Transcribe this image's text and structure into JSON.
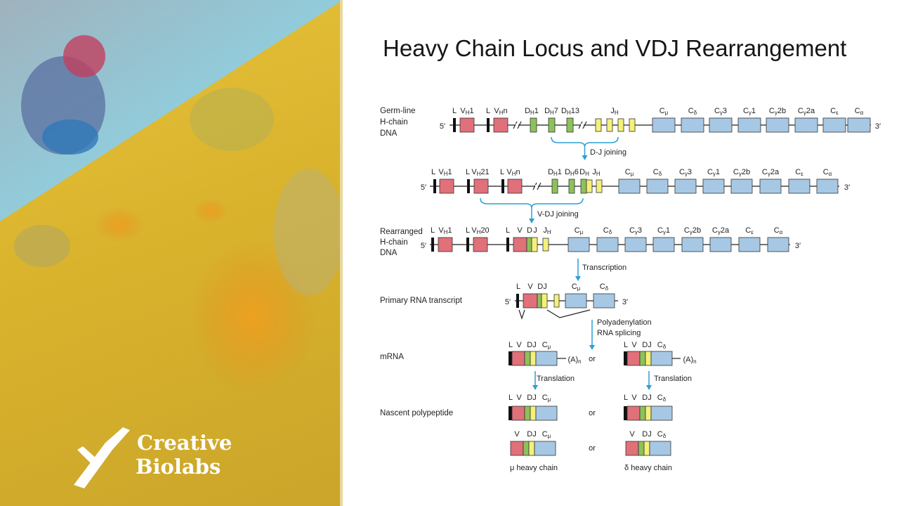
{
  "logo": {
    "line1": "Creative",
    "line2": "Biolabs"
  },
  "title": "Heavy Chain Locus and VDJ Rearrangement",
  "diagram": {
    "germline": {
      "label": [
        "Germ-line",
        "H-chain",
        "DNA"
      ],
      "five": "5′",
      "three": "3′",
      "genes": [
        {
          "base": "L"
        },
        {
          "base": "V",
          "sub": "H",
          "tail": "1"
        },
        {
          "base": "L"
        },
        {
          "base": "V",
          "sub": "H",
          "tail": "n"
        },
        {
          "base": "D",
          "sub": "H",
          "tail": "1"
        },
        {
          "base": "D",
          "sub": "H",
          "tail": "7"
        },
        {
          "base": "D",
          "sub": "H",
          "tail": "13"
        },
        {
          "base": "J",
          "sub": "H"
        },
        {
          "base": "C",
          "sub": "μ"
        },
        {
          "base": "C",
          "sub": "δ"
        },
        {
          "base": "C",
          "sub": "γ",
          "tail": "3"
        },
        {
          "base": "C",
          "sub": "γ",
          "tail": "1"
        },
        {
          "base": "C",
          "sub": "γ",
          "tail": "2b"
        },
        {
          "base": "C",
          "sub": "γ",
          "tail": "2a"
        },
        {
          "base": "C",
          "sub": "ε"
        },
        {
          "base": "C",
          "sub": "α"
        }
      ]
    },
    "dj_joining": "D-J joining",
    "intermediate": {
      "five": "5′",
      "three": "3′",
      "genes": [
        {
          "base": "L"
        },
        {
          "base": "V",
          "sub": "H",
          "tail": "1"
        },
        {
          "base": "L"
        },
        {
          "base": "V",
          "sub": "H",
          "tail": "21"
        },
        {
          "base": "L"
        },
        {
          "base": "V",
          "sub": "H",
          "tail": "n"
        },
        {
          "base": "D",
          "sub": "H",
          "tail": "1"
        },
        {
          "base": "D",
          "sub": "H",
          "tail": "6"
        },
        {
          "base": "D",
          "sub": "H"
        },
        {
          "base": "J",
          "sub": "H"
        },
        {
          "base": "C",
          "sub": "μ"
        },
        {
          "base": "C",
          "sub": "δ"
        },
        {
          "base": "C",
          "sub": "γ",
          "tail": "3"
        },
        {
          "base": "C",
          "sub": "γ",
          "tail": "1"
        },
        {
          "base": "C",
          "sub": "γ",
          "tail": "2b"
        },
        {
          "base": "C",
          "sub": "γ",
          "tail": "2a"
        },
        {
          "base": "C",
          "sub": "ε"
        },
        {
          "base": "C",
          "sub": "α"
        }
      ]
    },
    "vdj_joining": "V-DJ joining",
    "rearranged": {
      "label": [
        "Rearranged",
        "H-chain",
        "DNA"
      ],
      "five": "5′",
      "three": "3′",
      "genes": [
        {
          "base": "L"
        },
        {
          "base": "V",
          "sub": "H",
          "tail": "1"
        },
        {
          "base": "L"
        },
        {
          "base": "V",
          "sub": "H",
          "tail": "20"
        },
        {
          "base": "L"
        },
        {
          "base": "V"
        },
        {
          "base": "D"
        },
        {
          "base": "J"
        },
        {
          "base": "J",
          "sub": "H"
        },
        {
          "base": "C",
          "sub": "μ"
        },
        {
          "base": "C",
          "sub": "δ"
        },
        {
          "base": "C",
          "sub": "γ",
          "tail": "3"
        },
        {
          "base": "C",
          "sub": "γ",
          "tail": "1"
        },
        {
          "base": "C",
          "sub": "γ",
          "tail": "2b"
        },
        {
          "base": "C",
          "sub": "γ",
          "tail": "2a"
        },
        {
          "base": "C",
          "sub": "ε"
        },
        {
          "base": "C",
          "sub": "α"
        }
      ]
    },
    "transcription": "Transcription",
    "primary": {
      "label": "Primary RNA transcript",
      "five": "5′",
      "three": "3′",
      "genes": [
        {
          "base": "L"
        },
        {
          "base": "V"
        },
        {
          "base": "DJ"
        },
        {
          "base": "C",
          "sub": "μ"
        },
        {
          "base": "C",
          "sub": "δ"
        }
      ]
    },
    "processing": [
      "Polyadenylation",
      "RNA splicing"
    ],
    "mrna": {
      "label": "mRNA",
      "or": "or",
      "mu": {
        "genes": [
          {
            "base": "L"
          },
          {
            "base": "V"
          },
          {
            "base": "DJ"
          },
          {
            "base": "C",
            "sub": "μ"
          }
        ],
        "tail": {
          "base": "(A)",
          "sub": "n"
        }
      },
      "delta": {
        "genes": [
          {
            "base": "L"
          },
          {
            "base": "V"
          },
          {
            "base": "DJ"
          },
          {
            "base": "C",
            "sub": "δ"
          }
        ],
        "tail": {
          "base": "(A)",
          "sub": "n"
        }
      }
    },
    "translation": [
      "Translation",
      "Translation"
    ],
    "nascent": {
      "label": "Nascent polypeptide",
      "or": "or",
      "mu": {
        "genes": [
          {
            "base": "L"
          },
          {
            "base": "V"
          },
          {
            "base": "DJ"
          },
          {
            "base": "C",
            "sub": "μ"
          }
        ]
      },
      "delta": {
        "genes": [
          {
            "base": "L"
          },
          {
            "base": "V"
          },
          {
            "base": "DJ"
          },
          {
            "base": "C",
            "sub": "δ"
          }
        ]
      }
    },
    "heavy": {
      "or": "or",
      "mu": {
        "genes": [
          {
            "base": "V"
          },
          {
            "base": "DJ"
          },
          {
            "base": "C",
            "sub": "μ"
          }
        ],
        "name": "μ heavy chain"
      },
      "delta": {
        "genes": [
          {
            "base": "V"
          },
          {
            "base": "DJ"
          },
          {
            "base": "C",
            "sub": "δ"
          }
        ],
        "name": "δ heavy chain"
      }
    }
  }
}
